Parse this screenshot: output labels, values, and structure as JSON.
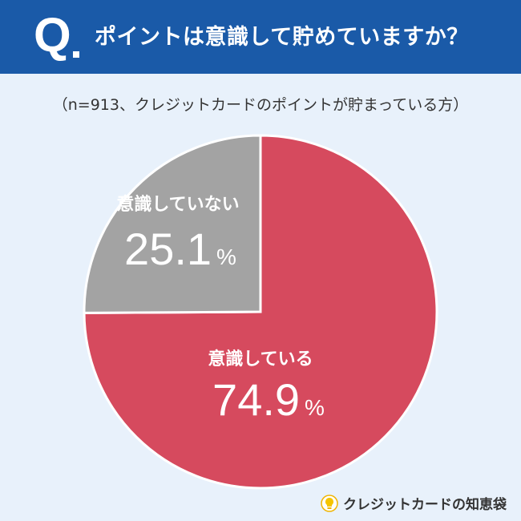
{
  "header": {
    "q_letter": "Q",
    "question": "ポイントは意識して貯めていますか？"
  },
  "sample_note": "（n=913、クレジットカードのポイントが貯まっている方）",
  "colors": {
    "header_bg": "#1a5aa8",
    "page_bg": "#e8f1fb",
    "aware": "#d64a5e",
    "unaware": "#a3a3a3"
  },
  "chart_data": {
    "type": "pie",
    "title": "",
    "slices": [
      {
        "label": "意識している",
        "value": 74.9,
        "display": "74.9",
        "unit": "%",
        "color": "#d64a5e"
      },
      {
        "label": "意識していない",
        "value": 25.1,
        "display": "25.1",
        "unit": "%",
        "color": "#a3a3a3"
      }
    ]
  },
  "brand": {
    "name": "クレジットカードの知恵袋",
    "icon": "lightbulb-logo-icon"
  }
}
